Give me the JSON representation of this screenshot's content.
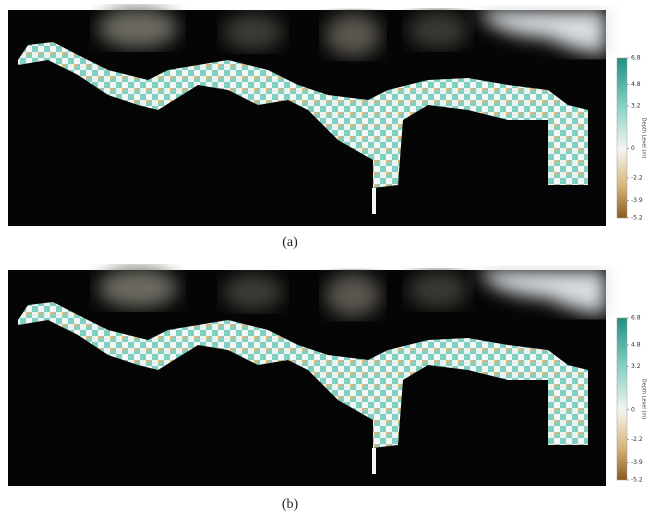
{
  "panels": [
    {
      "caption": "(a)",
      "colorbar": {
        "label": "Depth Level (m)",
        "lim": [
          -5.2,
          6.8
        ],
        "ticks": [
          6.8,
          4.8,
          3.2,
          0,
          -2.2,
          -3.9,
          -5.2
        ]
      }
    },
    {
      "caption": "(b)",
      "colorbar": {
        "label": "Depth Level (m)",
        "lim": [
          -5.2,
          6.8
        ],
        "ticks": [
          6.8,
          4.8,
          3.2,
          0,
          -2.2,
          -3.9,
          -5.2
        ]
      }
    }
  ]
}
